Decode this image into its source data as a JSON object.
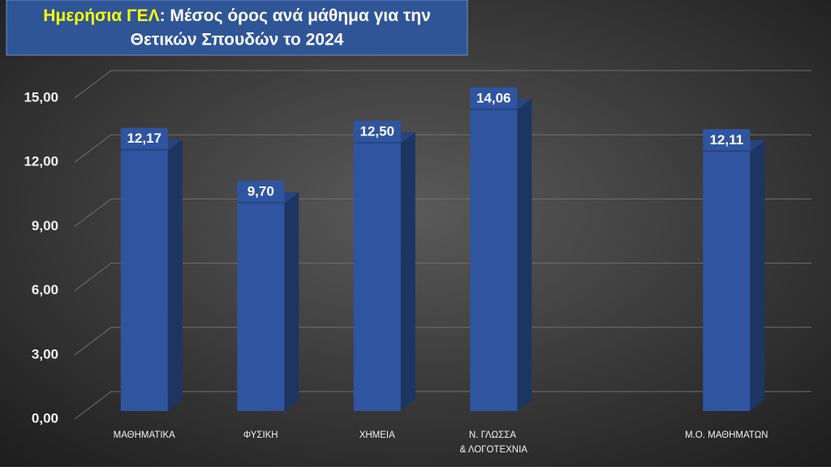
{
  "chart_data": {
    "type": "bar3d",
    "title": [
      "Ημερήσια ΓΕΛ",
      ": Μέσος όρος ανά μάθημα για την",
      "Θετικών Σπουδών το 2024"
    ],
    "categories": [
      "ΜΑΘΗΜΑΤΙΚΑ",
      "ΦΥΣΙΚΗ",
      "ΧΗΜΕΙΑ",
      "Ν. ΓΛΩΣΣΑ & ΛΟΓΟΤΕΧΝΙΑ",
      null,
      "Μ.Ο. ΜΑΘΗΜΑΤΩΝ"
    ],
    "values": [
      12.17,
      9.7,
      12.5,
      14.06,
      null,
      12.11
    ],
    "value_labels": [
      "12,17",
      "9,70",
      "12,50",
      "14,06",
      null,
      "12,11"
    ],
    "color": "#2f55a0",
    "ylim": [
      0,
      15
    ],
    "yticks": [
      {
        "value": 0,
        "label": "0,00"
      },
      {
        "value": 3,
        "label": "3,00"
      },
      {
        "value": 6,
        "label": "6,00"
      },
      {
        "value": 9,
        "label": "9,00"
      },
      {
        "value": 12,
        "label": "12,00"
      },
      {
        "value": 15,
        "label": "15,00"
      }
    ],
    "grid": true
  }
}
